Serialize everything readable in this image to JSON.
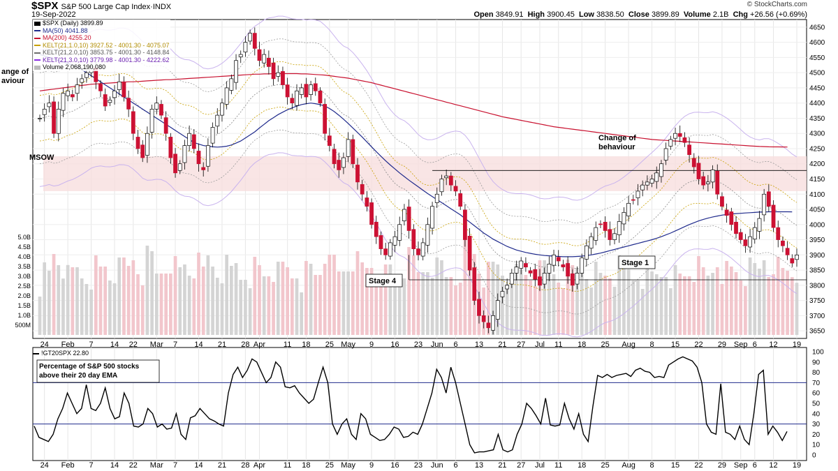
{
  "header": {
    "symbol": "$SPX",
    "name": "S&P 500 Large Cap Index",
    "exchange": "INDX",
    "date": "19-Sep-2022",
    "brand": "© StockCharts.com",
    "open_label": "Open",
    "open": "3849.91",
    "high_label": "High",
    "high": "3900.45",
    "low_label": "Low",
    "low": "3838.50",
    "close_label": "Close",
    "close": "3899.89",
    "volume_label": "Volume",
    "volume": "2.1B",
    "chg_label": "Chg",
    "chg": "+26.56 (+0.69%)"
  },
  "legend": {
    "symbol_line": "$SPX (Daily) 3899.89",
    "ma50": "MA(50) 4041.88",
    "ma200": "MA(200) 4255.20",
    "kelt1": "KELT(21,1.0,10) 3927.52 - 4001.30 - 4075.07",
    "kelt2": "KELT(21,2.0,10) 3853.75 - 4001.30 - 4148.84",
    "kelt3": "KELT(21,3.0,10) 3779.98 - 4001.30 - 4222.62",
    "volume": "Volume 2,068,190,080",
    "colors": {
      "ma50": "#1f2a8c",
      "ma200": "#c8102e",
      "kelt1": "#c8a000",
      "kelt2": "#6e6e6e",
      "kelt3": "#8a2be2",
      "volume": "#888888"
    }
  },
  "lower_legend": "!GT20SPX 22.80",
  "chart_data": [
    {
      "type": "candlestick",
      "ylim": [
        3625,
        4675
      ],
      "y_ticks": [
        3650,
        3700,
        3750,
        3800,
        3850,
        3900,
        3950,
        4000,
        4050,
        4100,
        4150,
        4200,
        4250,
        4300,
        4350,
        4400,
        4450,
        4500,
        4550,
        4600,
        4650
      ],
      "volume_ticks": [
        "500M",
        "1.0B",
        "1.5B",
        "2.0B",
        "2.5B",
        "3.0B",
        "3.5B",
        "4.0B",
        "4.5B",
        "5.0B"
      ],
      "x_ticks": [
        {
          "i": 1,
          "label": "24"
        },
        {
          "i": 6,
          "label": "Feb"
        },
        {
          "i": 11,
          "label": "7"
        },
        {
          "i": 16,
          "label": "14"
        },
        {
          "i": 20,
          "label": "22"
        },
        {
          "i": 25,
          "label": "Mar"
        },
        {
          "i": 29,
          "label": "7"
        },
        {
          "i": 34,
          "label": "14"
        },
        {
          "i": 39,
          "label": "21"
        },
        {
          "i": 44,
          "label": "28"
        },
        {
          "i": 47,
          "label": "Apr"
        },
        {
          "i": 53,
          "label": "11"
        },
        {
          "i": 57,
          "label": "18"
        },
        {
          "i": 62,
          "label": "25"
        },
        {
          "i": 66,
          "label": "May"
        },
        {
          "i": 71,
          "label": "9"
        },
        {
          "i": 76,
          "label": "16"
        },
        {
          "i": 81,
          "label": "23"
        },
        {
          "i": 85,
          "label": "Jun"
        },
        {
          "i": 89,
          "label": "6"
        },
        {
          "i": 94,
          "label": "13"
        },
        {
          "i": 99,
          "label": "21"
        },
        {
          "i": 103,
          "label": "27"
        },
        {
          "i": 107,
          "label": "Jul"
        },
        {
          "i": 111,
          "label": "11"
        },
        {
          "i": 116,
          "label": "18"
        },
        {
          "i": 121,
          "label": "25"
        },
        {
          "i": 126,
          "label": "Aug"
        },
        {
          "i": 131,
          "label": "8"
        },
        {
          "i": 136,
          "label": "15"
        },
        {
          "i": 141,
          "label": "22"
        },
        {
          "i": 146,
          "label": "29"
        },
        {
          "i": 150,
          "label": "Sep"
        },
        {
          "i": 153,
          "label": "6"
        },
        {
          "i": 157,
          "label": "12"
        },
        {
          "i": 162,
          "label": "19"
        }
      ],
      "close": [
        4350,
        4380,
        4400,
        4300,
        4380,
        4432,
        4440,
        4420,
        4460,
        4480,
        4500,
        4520,
        4470,
        4440,
        4390,
        4410,
        4440,
        4470,
        4420,
        4380,
        4300,
        4250,
        4220,
        4300,
        4380,
        4400,
        4360,
        4300,
        4220,
        4170,
        4200,
        4260,
        4300,
        4250,
        4200,
        4180,
        4260,
        4320,
        4360,
        4400,
        4450,
        4480,
        4540,
        4560,
        4600,
        4630,
        4580,
        4540,
        4560,
        4520,
        4480,
        4500,
        4460,
        4420,
        4400,
        4440,
        4450,
        4420,
        4460,
        4440,
        4400,
        4300,
        4260,
        4200,
        4180,
        4220,
        4280,
        4200,
        4140,
        4100,
        4060,
        4000,
        3960,
        3920,
        3900,
        3940,
        3960,
        4000,
        4050,
        3980,
        3920,
        3900,
        3940,
        4000,
        4060,
        4100,
        4150,
        4160,
        4130,
        4110,
        4060,
        3950,
        3850,
        3750,
        3700,
        3680,
        3660,
        3700,
        3750,
        3780,
        3800,
        3840,
        3860,
        3880,
        3860,
        3840,
        3820,
        3800,
        3840,
        3870,
        3900,
        3880,
        3860,
        3830,
        3800,
        3840,
        3890,
        3930,
        3960,
        3990,
        4000,
        3980,
        3950,
        3970,
        4010,
        4040,
        4070,
        4080,
        4110,
        4130,
        4140,
        4150,
        4170,
        4200,
        4250,
        4280,
        4300,
        4290,
        4270,
        4230,
        4190,
        4150,
        4130,
        4140,
        4180,
        4100,
        4060,
        4030,
        4000,
        3970,
        3950,
        3930,
        3960,
        3990,
        4020,
        4100,
        4060,
        3990,
        3950,
        3930,
        3900,
        3873,
        3899.89
      ],
      "ma50": [
        4560,
        4555,
        4550,
        4545,
        4540,
        4535,
        4530,
        4525,
        4520,
        4510,
        4500,
        4490,
        4480,
        4470,
        4460,
        4450,
        4440,
        4430,
        4420,
        4410,
        4400,
        4390,
        4380,
        4370,
        4360,
        4350,
        4340,
        4330,
        4320,
        4310,
        4300,
        4290,
        4280,
        4270,
        4265,
        4260,
        4258,
        4256,
        4255,
        4256,
        4258,
        4262,
        4268,
        4275,
        4285,
        4295,
        4305,
        4318,
        4330,
        4342,
        4352,
        4362,
        4370,
        4378,
        4384,
        4390,
        4395,
        4398,
        4400,
        4398,
        4395,
        4390,
        4382,
        4372,
        4360,
        4347,
        4333,
        4318,
        4303,
        4288,
        4272,
        4256,
        4240,
        4225,
        4210,
        4196,
        4183,
        4170,
        4158,
        4146,
        4135,
        4124,
        4113,
        4102,
        4092,
        4082,
        4072,
        4062,
        4052,
        4042,
        4032,
        4020,
        4008,
        3996,
        3984,
        3972,
        3962,
        3952,
        3944,
        3936,
        3928,
        3922,
        3916,
        3912,
        3908,
        3905,
        3902,
        3900,
        3898,
        3897,
        3896,
        3895,
        3894,
        3894,
        3894,
        3895,
        3896,
        3898,
        3900,
        3903,
        3906,
        3910,
        3914,
        3918,
        3922,
        3926,
        3930,
        3934,
        3938,
        3942,
        3946,
        3950,
        3955,
        3960,
        3966,
        3972,
        3979,
        3986,
        3993,
        4000,
        4006,
        4012,
        4017,
        4021,
        4025,
        4028,
        4031,
        4033,
        4035,
        4036,
        4037,
        4038,
        4039,
        4040,
        4041,
        4041,
        4042,
        4042,
        4042,
        4042,
        4042,
        4041.88
      ],
      "ma200": [
        4440,
        4442,
        4444,
        4446,
        4448,
        4450,
        4452,
        4454,
        4456,
        4458,
        4460,
        4462,
        4463,
        4464,
        4465,
        4466,
        4467,
        4468,
        4469,
        4470,
        4470,
        4471,
        4472,
        4473,
        4474,
        4475,
        4476,
        4477,
        4477,
        4478,
        4479,
        4480,
        4481,
        4482,
        4483,
        4484,
        4485,
        4486,
        4487,
        4488,
        4489,
        4490,
        4491,
        4492,
        4493,
        4494,
        4495,
        4495,
        4496,
        4496,
        4497,
        4497,
        4497,
        4497,
        4497,
        4497,
        4496,
        4496,
        4495,
        4494,
        4493,
        4492,
        4490,
        4488,
        4486,
        4484,
        4482,
        4479,
        4476,
        4473,
        4470,
        4467,
        4463,
        4459,
        4455,
        4451,
        4447,
        4443,
        4439,
        4435,
        4431,
        4427,
        4423,
        4419,
        4415,
        4411,
        4407,
        4403,
        4399,
        4395,
        4391,
        4387,
        4383,
        4379,
        4375,
        4371,
        4367,
        4363,
        4359,
        4355,
        4352,
        4349,
        4346,
        4343,
        4340,
        4337,
        4334,
        4331,
        4328,
        4325,
        4322,
        4320,
        4318,
        4316,
        4314,
        4312,
        4310,
        4308,
        4306,
        4304,
        4302,
        4300,
        4298,
        4296,
        4294,
        4292,
        4290,
        4288,
        4286,
        4284,
        4282,
        4280,
        4279,
        4278,
        4277,
        4276,
        4275,
        4274,
        4273,
        4272,
        4271,
        4270,
        4269,
        4268,
        4267,
        4266,
        4265,
        4264,
        4263,
        4262,
        4261,
        4260,
        4259,
        4258,
        4257,
        4256.5,
        4256,
        4255.8,
        4255.6,
        4255.4,
        4255.2
      ]
    },
    {
      "type": "line",
      "series_name": "!GT20SPX",
      "ylim": [
        0,
        100
      ],
      "y_ticks": [
        0,
        10,
        20,
        30,
        40,
        50,
        60,
        70,
        80,
        90,
        100
      ],
      "reference_lines": [
        70,
        30
      ],
      "values": [
        28,
        17,
        15,
        13,
        20,
        35,
        45,
        60,
        50,
        40,
        45,
        68,
        45,
        43,
        50,
        65,
        45,
        35,
        37,
        60,
        50,
        28,
        27,
        30,
        45,
        40,
        27,
        30,
        25,
        26,
        40,
        20,
        15,
        36,
        38,
        45,
        40,
        35,
        33,
        30,
        28,
        60,
        78,
        85,
        75,
        82,
        93,
        90,
        80,
        70,
        75,
        90,
        85,
        66,
        65,
        67,
        60,
        55,
        50,
        54,
        70,
        85,
        70,
        30,
        20,
        30,
        35,
        20,
        15,
        40,
        35,
        20,
        17,
        14,
        15,
        20,
        27,
        25,
        17,
        18,
        22,
        20,
        30,
        45,
        60,
        83,
        75,
        60,
        85,
        70,
        50,
        30,
        10,
        2,
        3,
        3,
        4,
        5,
        20,
        5,
        3,
        5,
        20,
        30,
        50,
        45,
        38,
        30,
        55,
        29,
        28,
        29,
        50,
        35,
        25,
        40,
        20,
        13,
        47,
        77,
        75,
        78,
        75,
        77,
        78,
        79,
        76,
        82,
        84,
        81,
        80,
        75,
        76,
        75,
        87,
        90,
        93,
        95,
        93,
        91,
        85,
        70,
        30,
        22,
        20,
        69,
        22,
        20,
        15,
        28,
        15,
        10,
        40,
        78,
        82,
        20,
        28,
        22,
        14,
        22.8
      ]
    }
  ],
  "annotations": {
    "change_left": [
      "ange of",
      "aviour"
    ],
    "msow": "MSOW",
    "change_right": [
      "Change of",
      "behaviour"
    ],
    "stage4": "Stage 4",
    "stage1": "Stage 1",
    "lower_box": [
      "Percentage of S&P 500 stocks",
      "above their 20 day EMA"
    ]
  }
}
